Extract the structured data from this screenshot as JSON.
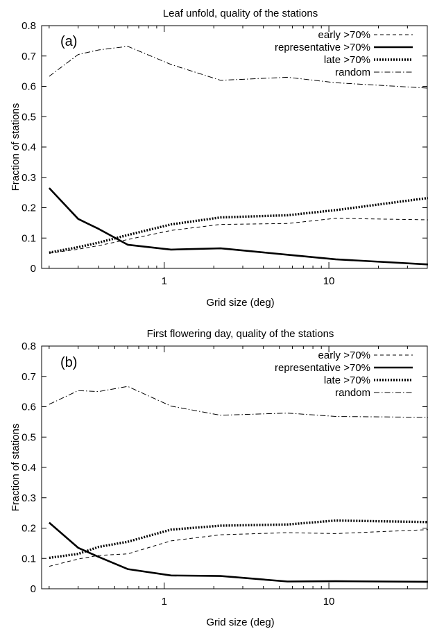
{
  "chart_data": [
    {
      "type": "line",
      "panel": "(a)",
      "title": "Leaf unfold, quality of the stations",
      "xlabel": "Grid size (deg)",
      "ylabel": "Fraction of stations",
      "xscale": "log",
      "xlim": [
        0.18,
        40
      ],
      "ylim": [
        0,
        0.8
      ],
      "xticks": [
        {
          "value": 1,
          "label": "1"
        },
        {
          "value": 10,
          "label": "10"
        }
      ],
      "yticks": [
        {
          "value": 0,
          "label": "0"
        },
        {
          "value": 0.1,
          "label": "0.1"
        },
        {
          "value": 0.2,
          "label": "0.2"
        },
        {
          "value": 0.3,
          "label": "0.3"
        },
        {
          "value": 0.4,
          "label": "0.4"
        },
        {
          "value": 0.5,
          "label": "0.5"
        },
        {
          "value": 0.6,
          "label": "0.6"
        },
        {
          "value": 0.7,
          "label": "0.7"
        },
        {
          "value": 0.8,
          "label": "0.8"
        }
      ],
      "grid": false,
      "legend_position": "top-right",
      "x": [
        0.2,
        0.3,
        0.4,
        0.6,
        1.1,
        2.2,
        5.6,
        11,
        40
      ],
      "series": [
        {
          "name": "early >70%",
          "style": "dashed",
          "values": [
            0.05,
            0.063,
            0.075,
            0.095,
            0.125,
            0.145,
            0.148,
            0.165,
            0.16
          ]
        },
        {
          "name": "representative >70%",
          "style": "solid-thick",
          "values": [
            0.265,
            0.163,
            0.13,
            0.078,
            0.062,
            0.066,
            0.045,
            0.03,
            0.013
          ]
        },
        {
          "name": "late >70%",
          "style": "dotted",
          "values": [
            0.052,
            0.07,
            0.085,
            0.11,
            0.145,
            0.168,
            0.175,
            0.192,
            0.232
          ]
        },
        {
          "name": "random",
          "style": "dash-dot",
          "values": [
            0.633,
            0.705,
            0.72,
            0.732,
            0.672,
            0.62,
            0.63,
            0.612,
            0.594
          ]
        }
      ]
    },
    {
      "type": "line",
      "panel": "(b)",
      "title": "First flowering day, quality of the stations",
      "xlabel": "Grid size (deg)",
      "ylabel": "Fraction of stations",
      "xscale": "log",
      "xlim": [
        0.18,
        40
      ],
      "ylim": [
        0,
        0.8
      ],
      "xticks": [
        {
          "value": 1,
          "label": "1"
        },
        {
          "value": 10,
          "label": "10"
        }
      ],
      "yticks": [
        {
          "value": 0,
          "label": "0"
        },
        {
          "value": 0.1,
          "label": "0.1"
        },
        {
          "value": 0.2,
          "label": "0.2"
        },
        {
          "value": 0.3,
          "label": "0.3"
        },
        {
          "value": 0.4,
          "label": "0.4"
        },
        {
          "value": 0.5,
          "label": "0.5"
        },
        {
          "value": 0.6,
          "label": "0.6"
        },
        {
          "value": 0.7,
          "label": "0.7"
        },
        {
          "value": 0.8,
          "label": "0.8"
        }
      ],
      "grid": false,
      "legend_position": "top-right",
      "x": [
        0.2,
        0.3,
        0.4,
        0.6,
        1.1,
        2.2,
        5.6,
        11,
        40
      ],
      "series": [
        {
          "name": "early >70%",
          "style": "dashed",
          "values": [
            0.074,
            0.098,
            0.11,
            0.115,
            0.158,
            0.178,
            0.185,
            0.182,
            0.195
          ]
        },
        {
          "name": "representative >70%",
          "style": "solid-thick",
          "values": [
            0.218,
            0.135,
            0.105,
            0.065,
            0.044,
            0.042,
            0.024,
            0.025,
            0.023
          ]
        },
        {
          "name": "late >70%",
          "style": "dotted",
          "values": [
            0.102,
            0.115,
            0.138,
            0.155,
            0.195,
            0.208,
            0.212,
            0.225,
            0.22
          ]
        },
        {
          "name": "random",
          "style": "dash-dot",
          "values": [
            0.608,
            0.653,
            0.65,
            0.667,
            0.602,
            0.572,
            0.579,
            0.568,
            0.565
          ]
        }
      ]
    }
  ]
}
